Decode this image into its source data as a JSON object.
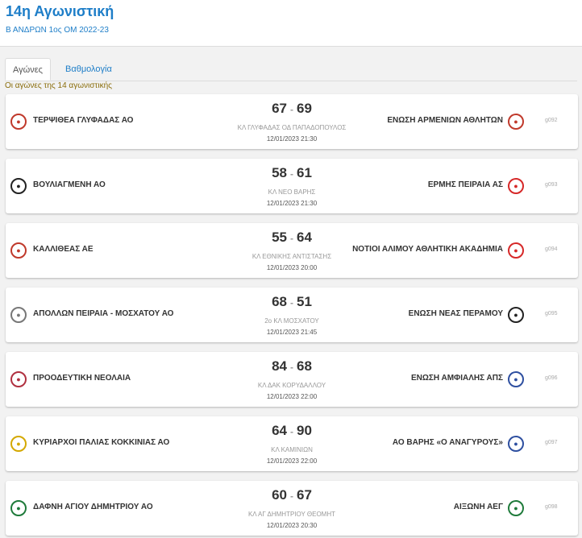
{
  "header": {
    "title": "14η Αγωνιστική",
    "subtitle": "Β ΑΝΔΡΩΝ 1ος ΟΜ 2022-23"
  },
  "tabs": [
    {
      "label": "Αγώνες",
      "active": true
    },
    {
      "label": "Βαθμολογία",
      "active": false
    }
  ],
  "intro": "Οι αγώνες της 14 αγωνιστικής",
  "colors": {
    "accent": "#1e7ec8",
    "intro_text": "#8a6d0b"
  },
  "matches": [
    {
      "home": "ΤΕΡΨΙΘΕΑ ΓΛΥΦΑΔΑΣ ΑΟ",
      "home_score": "67",
      "away_score": "69",
      "away": "ΕΝΩΣΗ ΑΡΜΕΝΙΩΝ ΑΘΛΗΤΩΝ",
      "venue": "ΚΛ ΓΛΥΦΑΔΑΣ ΟΔ ΠΑΠΑΔΟΠΟΥΛΟΣ",
      "datetime": "12/01/2023 21:30",
      "code": "g092"
    },
    {
      "home": "ΒΟΥΛΙΑΓΜΕΝΗ ΑΟ",
      "home_score": "58",
      "away_score": "61",
      "away": "ΕΡΜΗΣ ΠΕΙΡΑΙΑ ΑΣ",
      "venue": "ΚΛ ΝΕΟ ΒΑΡΗΣ",
      "datetime": "12/01/2023 21:30",
      "code": "g093"
    },
    {
      "home": "ΚΑΛΛΙΘΕΑΣ ΑΕ",
      "home_score": "55",
      "away_score": "64",
      "away": "ΝΟΤΙΟΙ ΑΛΙΜΟΥ ΑΘΛΗΤΙΚΗ ΑΚΑΔΗΜΙΑ",
      "venue": "ΚΛ ΕΘΝΙΚΗΣ ΑΝΤΙΣΤΑΣΗΣ",
      "datetime": "12/01/2023 20:00",
      "code": "g094"
    },
    {
      "home": "ΑΠΟΛΛΩΝ ΠΕΙΡΑΙΑ - ΜΟΣΧΑΤΟΥ ΑΟ",
      "home_score": "68",
      "away_score": "51",
      "away": "ΕΝΩΣΗ ΝΕΑΣ ΠΕΡΑΜΟΥ",
      "venue": "2ο ΚΛ ΜΟΣΧΑΤΟΥ",
      "datetime": "12/01/2023 21:45",
      "code": "g095"
    },
    {
      "home": "ΠΡΟΟΔΕΥΤΙΚΗ ΝΕΟΛΑΙΑ",
      "home_score": "84",
      "away_score": "68",
      "away": "ΕΝΩΣΗ ΑΜΦΙΑΛΗΣ ΑΠΣ",
      "venue": "ΚΛ ΔΑΚ ΚΟΡΥΔΑΛΛΟΥ",
      "datetime": "12/01/2023 22:00",
      "code": "g096"
    },
    {
      "home": "ΚΥΡΙΑΡΧΟΙ ΠΑΛΙΑΣ ΚΟΚΚΙΝΙΑΣ ΑΟ",
      "home_score": "64",
      "away_score": "90",
      "away": "ΑΟ ΒΑΡΗΣ «Ο ΑΝΑΓΥΡΟΥΣ»",
      "venue": "ΚΛ ΚΑΜΙΝΙΩΝ",
      "datetime": "12/01/2023 22:00",
      "code": "g097"
    },
    {
      "home": "ΔΑΦΝΗ ΑΓΙΟΥ ΔΗΜΗΤΡΙΟΥ ΑΟ",
      "home_score": "60",
      "away_score": "67",
      "away": "ΑΙΞΩΝΗ ΑΕΓ",
      "venue": "ΚΛ ΑΓ ΔΗΜΗΤΡΙΟΥ ΘΕΟΜΗΤ",
      "datetime": "12/01/2023 20:30",
      "code": "g098"
    }
  ],
  "logos": [
    {
      "home_icon": "club-crest-icon",
      "home_color": "#c0392b",
      "away_icon": "club-crest-icon",
      "away_color": "#c0392b"
    },
    {
      "home_icon": "club-crest-icon",
      "home_color": "#222222",
      "away_icon": "club-crest-icon",
      "away_color": "#d62828"
    },
    {
      "home_icon": "club-crest-icon",
      "home_color": "#c0392b",
      "away_icon": "club-crest-icon",
      "away_color": "#d62828"
    },
    {
      "home_icon": "club-crest-icon",
      "home_color": "#777777",
      "away_icon": "club-crest-icon",
      "away_color": "#222222"
    },
    {
      "home_icon": "club-crest-icon",
      "home_color": "#b03040",
      "away_icon": "club-crest-icon",
      "away_color": "#2e4fa0"
    },
    {
      "home_icon": "club-crest-icon",
      "home_color": "#d4a800",
      "away_icon": "club-crest-icon",
      "away_color": "#2e4fa0"
    },
    {
      "home_icon": "club-crest-icon",
      "home_color": "#1e7a3a",
      "away_icon": "club-crest-icon",
      "away_color": "#1e7a3a"
    }
  ]
}
